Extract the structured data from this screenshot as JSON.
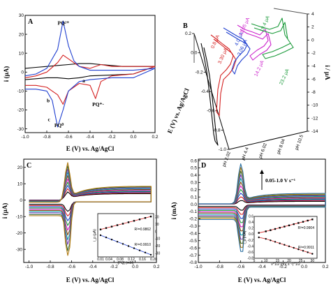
{
  "chart_data": [
    {
      "panel": "A",
      "type": "line",
      "xlabel": "E (V) vs. Ag/AgCl",
      "ylabel": "i (µA)",
      "xlim": [
        -1.0,
        0.2
      ],
      "ylim": [
        -32,
        30
      ],
      "xticks": [
        "-1.0",
        "-0.8",
        "-0.6",
        "-0.4",
        "-0.2",
        "0.0",
        "0.2"
      ],
      "yticks": [
        "-30",
        "-20",
        "-10",
        "0",
        "10",
        "20",
        "30"
      ],
      "annotations": [
        {
          "text": "PQ²⁺",
          "x": -0.7,
          "y": 25
        },
        {
          "text": "a",
          "x": -0.47,
          "y": -5.5
        },
        {
          "text": "b",
          "x": -0.8,
          "y": -16
        },
        {
          "text": "c",
          "x": -0.79,
          "y": -26
        },
        {
          "text": "PQ⁰",
          "x": -0.73,
          "y": -29
        },
        {
          "text": "PQ⁺·",
          "x": -0.38,
          "y": -18
        }
      ],
      "series": [
        {
          "label": "a",
          "color": "#000000",
          "x": [
            -1.0,
            -0.9,
            -0.8,
            -0.7,
            -0.6,
            -0.5,
            -0.4,
            -0.3,
            -0.2,
            -0.1,
            0.0,
            0.2,
            0.0,
            -0.2,
            -0.4,
            -0.5,
            -0.6,
            -0.7,
            -0.8,
            -0.9,
            -1.0
          ],
          "y": [
            2,
            2.5,
            3,
            3.5,
            4,
            4.5,
            4.5,
            4,
            3.5,
            3,
            3,
            3,
            -1,
            -1.5,
            -2,
            -3,
            -3.5,
            -3,
            -3,
            -3.5,
            -4
          ]
        },
        {
          "label": "b",
          "color": "#d42020",
          "x": [
            -1.0,
            -0.9,
            -0.8,
            -0.7,
            -0.65,
            -0.6,
            -0.5,
            -0.4,
            -0.3,
            -0.2,
            0.0,
            0.2,
            0.0,
            -0.2,
            -0.3,
            -0.35,
            -0.4,
            -0.5,
            -0.6,
            -0.65,
            -0.7,
            -0.8,
            -0.9,
            -1.0
          ],
          "y": [
            -3,
            -2,
            0,
            5,
            9,
            7,
            3,
            2,
            4,
            3,
            3,
            3,
            -1,
            -2,
            -5,
            -14,
            -7,
            -6,
            -10,
            -17,
            -12,
            -8,
            -7,
            -7
          ]
        },
        {
          "label": "c",
          "color": "#1f3fd0",
          "x": [
            -1.0,
            -0.9,
            -0.8,
            -0.7,
            -0.65,
            -0.6,
            -0.55,
            -0.5,
            -0.4,
            -0.3,
            -0.2,
            0.0,
            0.2,
            0.0,
            -0.2,
            -0.4,
            -0.5,
            -0.6,
            -0.65,
            -0.7,
            -0.75,
            -0.8,
            -0.9,
            -1.0
          ],
          "y": [
            -2,
            -1,
            2,
            12,
            27,
            14,
            6,
            3,
            1,
            1,
            1,
            1,
            2,
            -3,
            -3,
            -4,
            -5,
            -10,
            -20,
            -29,
            -15,
            -10,
            -9,
            -9
          ]
        }
      ]
    },
    {
      "panel": "B",
      "type": "line",
      "zlabel": "E (V) vs. Ag/AgCl",
      "ylabel": "i / µA",
      "categories": [
        "pH 2.02",
        "pH 4.4",
        "pH 6.02",
        "pH 8.04",
        "pH 10.5"
      ],
      "zticks": [
        "0.2",
        "0.0",
        "-0.2",
        "-0.4",
        "-0.6",
        "-0.8",
        "-1.0"
      ],
      "yticks": [
        "-14",
        "-12",
        "-10",
        "-8",
        "-6",
        "-4",
        "-2",
        "0",
        "2",
        "4"
      ],
      "labels": [
        {
          "text": "3.30 µA",
          "color": "#d42020"
        },
        {
          "text": "0.8 µA",
          "color": "#d42020"
        },
        {
          "text": "3.06 µA",
          "color": "#1f3fd0"
        },
        {
          "text": "4.0 µA",
          "color": "#1f3fd0"
        },
        {
          "text": "14.2 µA",
          "color": "#cc22cc"
        },
        {
          "text": "12.05 µA",
          "color": "#cc22cc"
        },
        {
          "text": "23.2 µA",
          "color": "#1a9a3a"
        },
        {
          "text": "19.4 µA",
          "color": "#1a9a3a"
        }
      ],
      "colors": [
        "#000000",
        "#d42020",
        "#1f3fd0",
        "#cc22cc",
        "#1a9a3a"
      ]
    },
    {
      "panel": "C",
      "type": "line",
      "xlabel": "E (V) vs. Ag/AgCl",
      "ylabel": "i (µA)",
      "xlim": [
        -1.05,
        0.2
      ],
      "ylim": [
        -38,
        25
      ],
      "xticks": [
        "-1.0",
        "-0.8",
        "-0.6",
        "-0.4",
        "-0.2",
        "0.0",
        "0.2"
      ],
      "yticks": [
        "-30",
        "-20",
        "-10",
        "0",
        "10",
        "20"
      ],
      "cathodic_peaks": [
        -6,
        -9,
        -12,
        -15,
        -18,
        -21,
        -24,
        -27,
        -31,
        -34
      ],
      "anodic_peaks": [
        4,
        6,
        8,
        10,
        12,
        14,
        16,
        18,
        20,
        22
      ],
      "colors": [
        "#000000",
        "#d42020",
        "#1f3fd0",
        "#1a9a3a",
        "#cc22cc",
        "#8b4513",
        "#0aa0a0",
        "#7a3fbf",
        "#3a6b3a",
        "#b07a10"
      ],
      "inset": {
        "xlabel": "[PQ] (mM)",
        "ylabel": "i_p (µA)",
        "xticks": [
          "0.01",
          "0.04",
          "0.08",
          "0.12",
          "0.16",
          "0.20"
        ],
        "yticks": [
          "-30",
          "-20",
          "-10",
          "0",
          "10",
          "20"
        ],
        "fits": [
          {
            "text": "R²=0.9862"
          },
          {
            "text": "R²=0.9910"
          }
        ],
        "x": [
          0.01,
          0.03,
          0.05,
          0.07,
          0.09,
          0.11,
          0.13,
          0.15,
          0.17,
          0.19
        ],
        "anodic": [
          3,
          5,
          7,
          9,
          11,
          13,
          15,
          17,
          19,
          21
        ],
        "cathodic": [
          -5,
          -8,
          -11,
          -14,
          -17,
          -20,
          -23,
          -26,
          -29,
          -32
        ]
      }
    },
    {
      "panel": "D",
      "type": "line",
      "xlabel": "E (V) vs. Ag/AgCl",
      "ylabel": "i (mA)",
      "xlim": [
        -1.0,
        0.2
      ],
      "ylim": [
        -0.8,
        0.62
      ],
      "xticks": [
        "-1.0",
        "-0.8",
        "-0.6",
        "-0.4",
        "-0.2",
        "0.0",
        "0.2"
      ],
      "yticks": [
        "-0.8",
        "-0.7",
        "-0.6",
        "-0.5",
        "-0.4",
        "-0.3",
        "-0.2",
        "-0.1",
        "0.0",
        "0.1",
        "0.2",
        "0.3",
        "0.4",
        "0.5",
        "0.6"
      ],
      "scan_rate_label": "0.05-1.0 V s⁻¹",
      "anodic_peaks": [
        0.05,
        0.1,
        0.15,
        0.2,
        0.25,
        0.3,
        0.35,
        0.4,
        0.45,
        0.5,
        0.55
      ],
      "cathodic_peaks": [
        -0.08,
        -0.14,
        -0.2,
        -0.26,
        -0.32,
        -0.38,
        -0.44,
        -0.5,
        -0.56,
        -0.62,
        -0.68
      ],
      "colors": [
        "#000000",
        "#d42020",
        "#1f3fd0",
        "#1a9a3a",
        "#cc22cc",
        "#8b4513",
        "#0aa0a0",
        "#7a3fbf",
        "#3a6b3a",
        "#b07a10",
        "#2a6fa0"
      ],
      "inset": {
        "xlabel": "v^1/2 (mV s⁻¹)^1/2",
        "ylabel": "i_p (mA)",
        "xticks": [
          "5",
          "10",
          "15",
          "20",
          "25",
          "30"
        ],
        "yticks": [
          "-0.8",
          "-0.6",
          "-0.4",
          "-0.2",
          "0.0",
          "0.2",
          "0.4",
          "0.6"
        ],
        "fits": [
          {
            "text": "R²=0.9904"
          },
          {
            "text": "R²=0.9911"
          }
        ],
        "x": [
          7,
          10,
          12,
          14,
          16,
          18,
          20,
          22,
          24,
          26,
          28,
          30
        ],
        "anodic": [
          0.05,
          0.1,
          0.14,
          0.18,
          0.22,
          0.26,
          0.3,
          0.34,
          0.38,
          0.42,
          0.46,
          0.5
        ],
        "cathodic": [
          -0.1,
          -0.15,
          -0.2,
          -0.25,
          -0.3,
          -0.35,
          -0.4,
          -0.45,
          -0.5,
          -0.55,
          -0.6,
          -0.65
        ]
      }
    }
  ]
}
